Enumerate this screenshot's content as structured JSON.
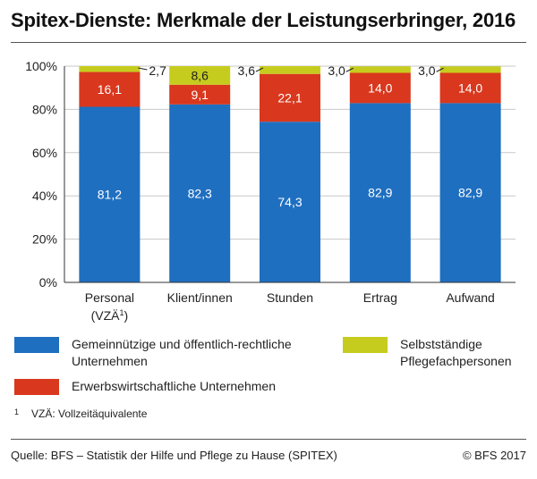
{
  "title": "Spitex-Dienste: Merkmale der Leistungserbringer, 2016",
  "colors": {
    "gemein": "#1f6fc0",
    "erwerb": "#d9381e",
    "selbst": "#c6cc1e",
    "grid": "#c8c8c8",
    "axis": "#333333"
  },
  "chart_data": {
    "type": "bar",
    "stacked": true,
    "categories": [
      "Personal (VZÄ1)",
      "Klient/innen",
      "Stunden",
      "Ertrag",
      "Aufwand"
    ],
    "category_labels": [
      {
        "line1": "Personal",
        "line2": "(VZÄ",
        "sup": "1",
        "line2_end": ")"
      },
      {
        "line1": "Klient/innen"
      },
      {
        "line1": "Stunden"
      },
      {
        "line1": "Ertrag"
      },
      {
        "line1": "Aufwand"
      }
    ],
    "series": [
      {
        "name": "Gemeinnützige und öffentlich-rechtliche Unternehmen",
        "color_key": "gemein",
        "values": [
          81.2,
          82.3,
          74.3,
          82.9,
          82.9
        ],
        "labels": [
          "81,2",
          "82,3",
          "74,3",
          "82,9",
          "82,9"
        ]
      },
      {
        "name": "Erwerbswirtschaftliche Unternehmen",
        "color_key": "erwerb",
        "values": [
          16.1,
          9.1,
          22.1,
          14.0,
          14.0
        ],
        "labels": [
          "16,1",
          "9,1",
          "22,1",
          "14,0",
          "14,0"
        ]
      },
      {
        "name": "Selbstständige Pflegefachpersonen",
        "color_key": "selbst",
        "values": [
          2.7,
          8.6,
          3.6,
          3.0,
          3.0
        ],
        "labels": [
          "2,7",
          "8,6",
          "3,6",
          "3,0",
          "3,0"
        ],
        "label_outside": [
          "right",
          "inside",
          "left",
          "left",
          "left"
        ]
      }
    ],
    "ylim": [
      0,
      100
    ],
    "yticks": [
      "0%",
      "20%",
      "40%",
      "60%",
      "80%",
      "100%"
    ],
    "grid": true
  },
  "legend": [
    {
      "line1": "Gemeinnützige und öffentlich-rechtliche",
      "line2": "Unternehmen",
      "color_key": "gemein"
    },
    {
      "line1": "Erwerbswirtschaftliche Unternehmen",
      "line2": "",
      "color_key": "erwerb"
    },
    {
      "line1": "Selbstständige",
      "line2": "Pflegefachpersonen",
      "color_key": "selbst"
    }
  ],
  "footnote": {
    "mark": "1",
    "text": "VZÄ: Vollzeitäquivalente"
  },
  "source": "Quelle: BFS – Statistik der Hilfe und Pflege zu Hause (SPITEX)",
  "copyright": "© BFS 2017"
}
